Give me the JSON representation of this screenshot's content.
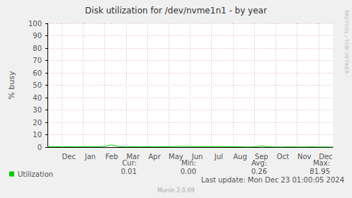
{
  "chart_data": {
    "type": "line",
    "title": "Disk utilization for /dev/nvme1n1 - by year",
    "y_label": "% busy",
    "categories": [
      null,
      null,
      null,
      "Dec",
      null,
      null,
      "Jan",
      null,
      null,
      "Feb",
      null,
      null,
      "Mar",
      null,
      null,
      "Apr",
      null,
      null,
      "May",
      null,
      null,
      "Jun",
      null,
      null,
      "Jul",
      null,
      null,
      "Aug",
      null,
      null,
      "Sep",
      null,
      null,
      "Oct",
      null,
      null,
      "Nov",
      null,
      null,
      "Dec",
      null
    ],
    "series": [
      {
        "name": "Utilization",
        "color": "#00cc00",
        "values": [
          0.3,
          0.5,
          0.2,
          0.3,
          0.2,
          0.4,
          0.5,
          0.3,
          0.6,
          1.8,
          0.4,
          0.2,
          0.3,
          0.2,
          0.3,
          0.2,
          0.3,
          0.4,
          0.5,
          0.6,
          0.5,
          0.4,
          0.5,
          0.4,
          0.5,
          0.4,
          0.3,
          0.2,
          0.1,
          0.2,
          0.9,
          0.2,
          0.1,
          0.1,
          0.2,
          0.1,
          0.1,
          0.2,
          0.1,
          0.1,
          0.01
        ],
        "stats": [
          {
            "label": "Cur:",
            "value": 0.01,
            "printed": "0.01"
          },
          {
            "label": "Min:",
            "value": 0,
            "printed": "0.00"
          },
          {
            "label": "Avg:",
            "value": 0.26,
            "printed": "0.26"
          },
          {
            "label": "Max:",
            "value": 81.95,
            "printed": "81.95"
          }
        ]
      }
    ],
    "ylim": [
      0,
      100
    ],
    "yticks": [
      0,
      10,
      20,
      30,
      40,
      50,
      60,
      70,
      80,
      90,
      100
    ],
    "grid": true,
    "legend": "bottom-left",
    "last_update": "Last update: Mon Dec 23 01:00:05 2024",
    "footer": "Munin 2.0.69",
    "watermark": "RRDTOOL / TOBI OETIKER"
  }
}
